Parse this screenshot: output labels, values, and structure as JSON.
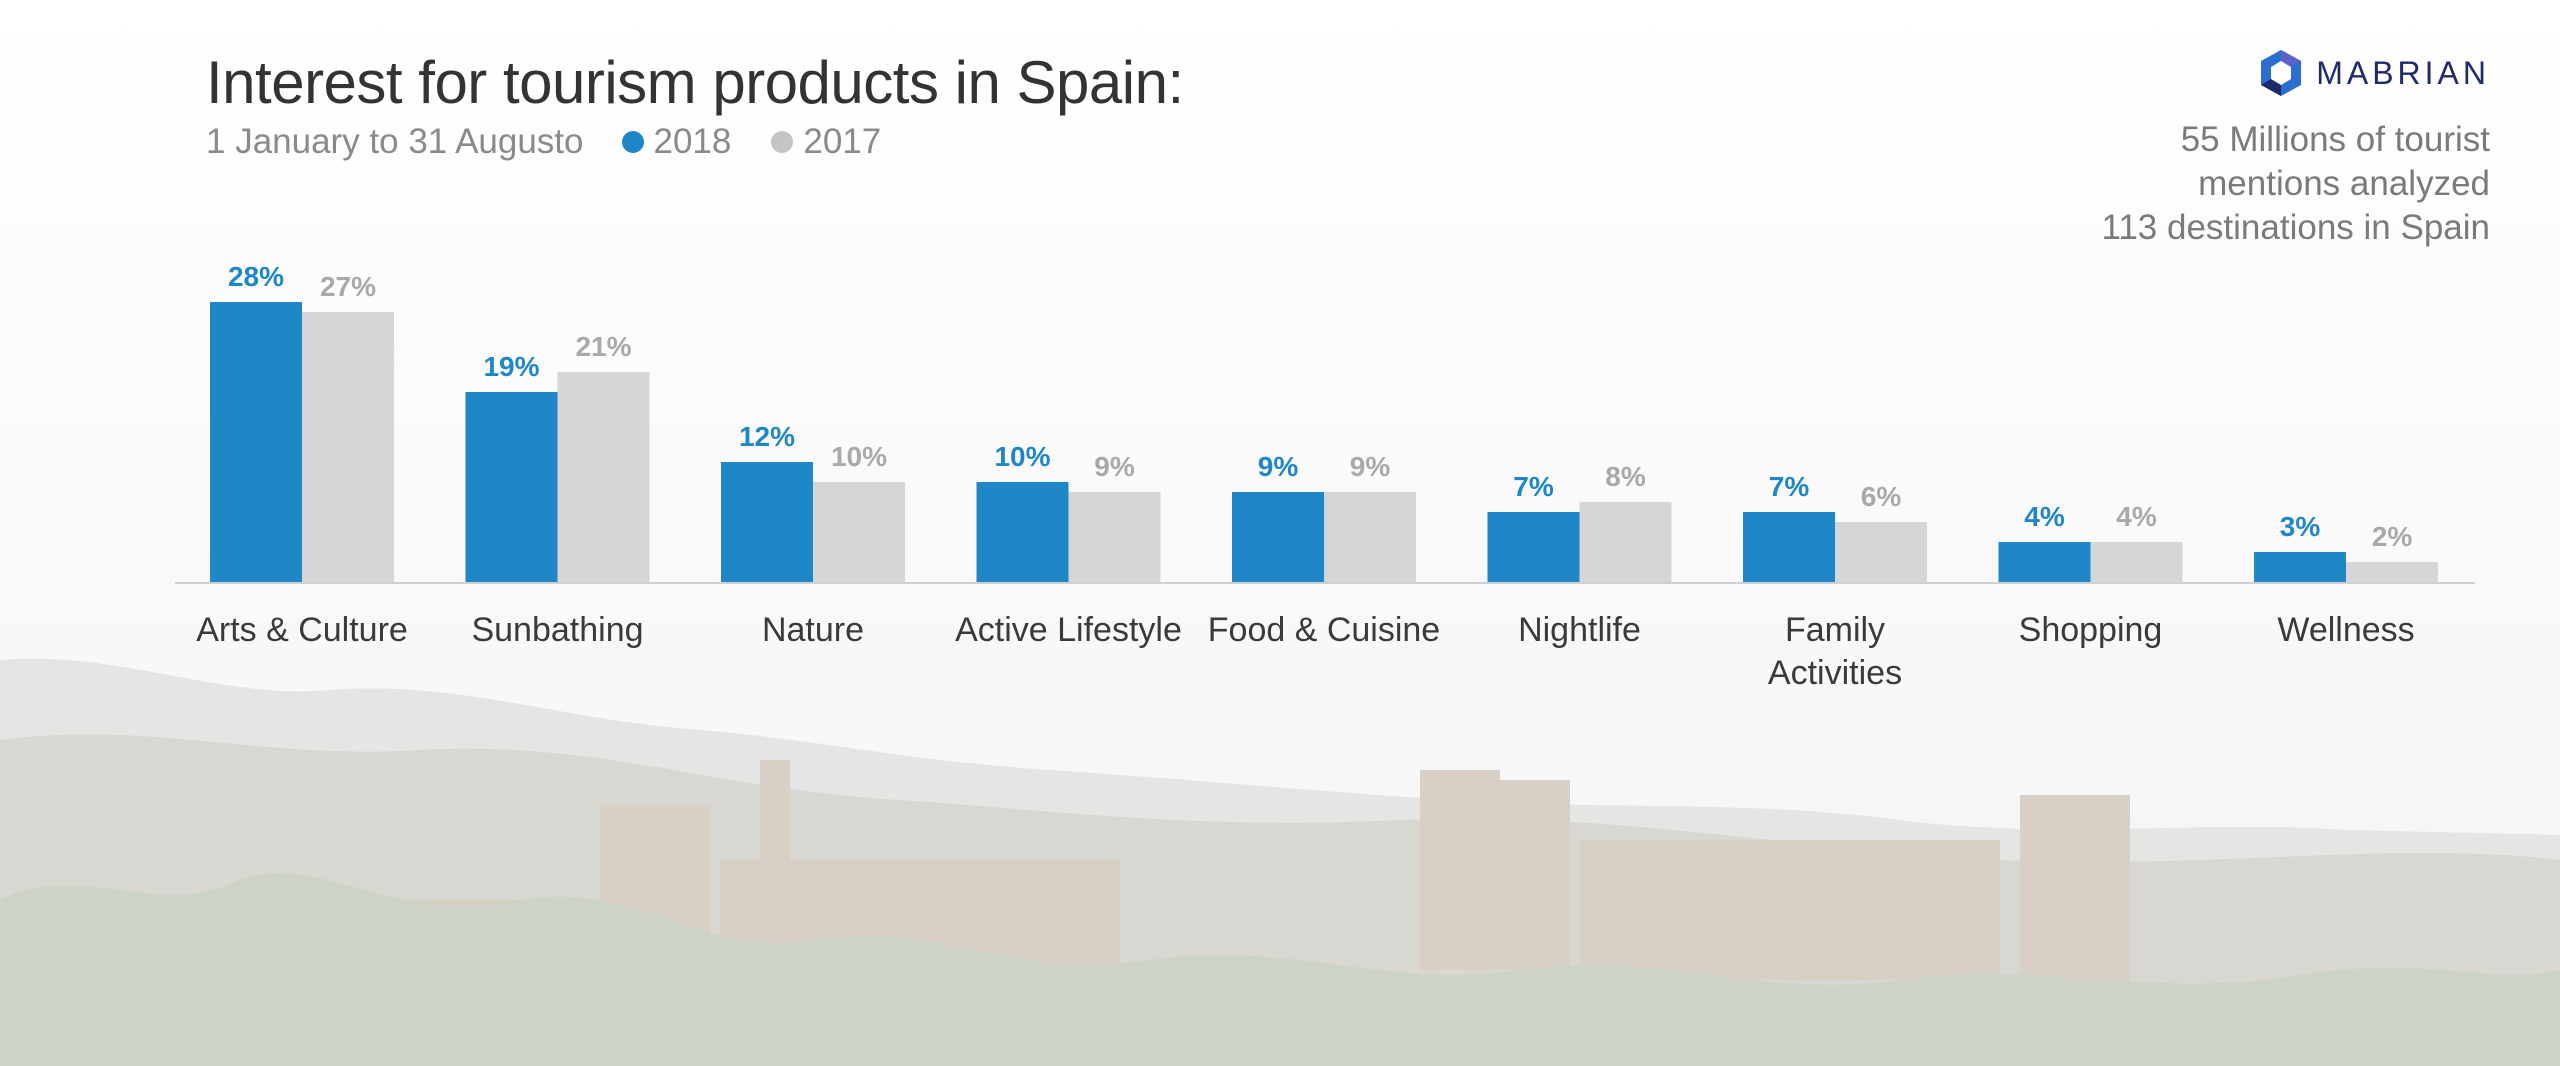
{
  "header": {
    "title": "Interest for tourism products in Spain:",
    "subtitle": "1 January to 31 Augusto"
  },
  "logo": {
    "text": "MABRIAN"
  },
  "stats": [
    "55 Millions of tourist",
    "mentions analyzed",
    "113 destinations in Spain"
  ],
  "chart_data": {
    "type": "bar",
    "categories": [
      [
        "Arts & Culture"
      ],
      [
        "Sunbathing"
      ],
      [
        "Nature"
      ],
      [
        "Active Lifestyle"
      ],
      [
        "Food & Cuisine"
      ],
      [
        "Nightlife"
      ],
      [
        "Family",
        "Activities"
      ],
      [
        "Shopping"
      ],
      [
        "Wellness"
      ]
    ],
    "series": [
      {
        "name": "2018",
        "color": "#1f86c8",
        "values": [
          28,
          19,
          12,
          10,
          9,
          7,
          7,
          4,
          3
        ],
        "labels": [
          "28%",
          "19%",
          "12%",
          "10%",
          "9%",
          "7%",
          "7%",
          "4%",
          "3%"
        ]
      },
      {
        "name": "2017",
        "color": "#d6d6d6",
        "label_color": "#a9a9a9",
        "values": [
          27,
          21,
          10,
          9,
          9,
          8,
          6,
          4,
          2
        ],
        "labels": [
          "27%",
          "21%",
          "10%",
          "9%",
          "9%",
          "8%",
          "6%",
          "4%",
          "2%"
        ]
      }
    ],
    "ylim": [
      0,
      30
    ],
    "grid": false,
    "legend_position": "top-left"
  }
}
